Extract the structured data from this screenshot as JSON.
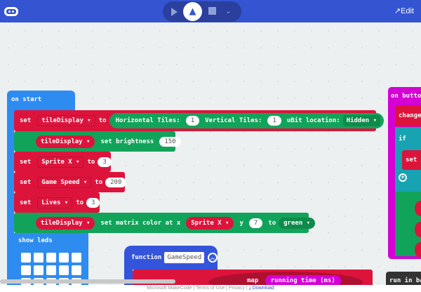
{
  "header": {
    "edit_label": "Edit",
    "blocks_icon": "puzzle-icon",
    "play_icon": "play-icon",
    "js_icon": "javascript-icon",
    "chevron_icon": "chevron-down-icon",
    "logo_icon": "microbit-icon"
  },
  "on_start": {
    "title": "on start",
    "row1": {
      "set": "set",
      "var": "tileDisplay",
      "to": "to",
      "h_label": "Horizontal Tiles:",
      "h_val": "1",
      "v_label": "Vertical Tiles:",
      "v_val": "1",
      "loc_label": "uBit location:",
      "loc_val": "Hidden"
    },
    "row2": {
      "var": "tileDisplay",
      "label": "set brightness",
      "val": "150"
    },
    "row3": {
      "set": "set",
      "var": "Sprite X",
      "to": "to",
      "val": "3"
    },
    "row4": {
      "set": "set",
      "var": "Game Speed",
      "to": "to",
      "val": "200"
    },
    "row5": {
      "set": "set",
      "var": "Lives",
      "to": "to",
      "val": "3"
    },
    "row6": {
      "var": "tileDisplay",
      "label": "set matrix color at x",
      "xvar": "Sprite X",
      "y": "y",
      "yval": "7",
      "to": "to",
      "color": "green"
    },
    "show_leds": "show leds"
  },
  "function_block": {
    "label": "function",
    "name": "GameSpeed",
    "map": "map",
    "running_time": "running time (ms)"
  },
  "on_button": {
    "title": "on butto",
    "change": "change",
    "if": "if",
    "set": "set"
  },
  "run_in_bg": "run in ba",
  "footer": {
    "microsoft": "Microsoft MakeCode",
    "terms": "Terms of Use",
    "privacy": "Privacy",
    "download": "Download"
  },
  "colors": {
    "header": "#3454d1",
    "variables": "#dc143c",
    "tiles": "#12a35a",
    "basic": "#2e8cf0",
    "functions": "#3455db",
    "input": "#d400d4",
    "logic": "#18a3b2"
  }
}
